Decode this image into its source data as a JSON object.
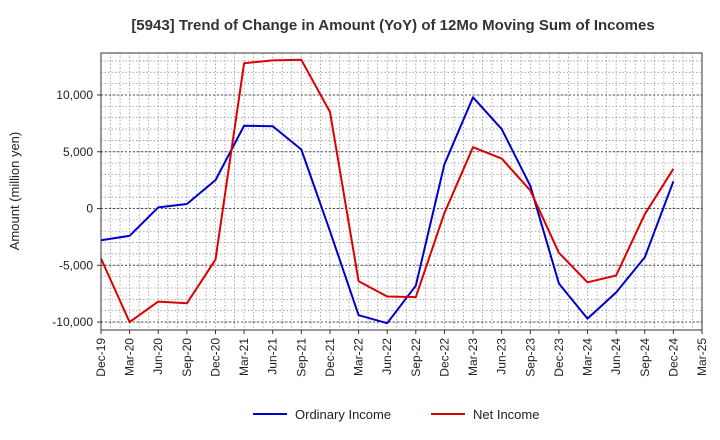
{
  "chart_data": {
    "type": "line",
    "title": "[5943]  Trend of Change in Amount (YoY) of 12Mo Moving Sum of Incomes",
    "ylabel": "Amount (million yen)",
    "xlabel": "",
    "ylim": [
      -10700,
      13700
    ],
    "yticks": [
      10000,
      5000,
      0,
      -5000,
      -10000
    ],
    "ytick_labels": [
      "10,000",
      "5,000",
      "0",
      "-5,000",
      "-10,000"
    ],
    "x_tick_labels": [
      "Dec-19",
      "Mar-20",
      "Jun-20",
      "Sep-20",
      "Dec-20",
      "Mar-21",
      "Jun-21",
      "Sep-21",
      "Dec-21",
      "Mar-22",
      "Jun-22",
      "Sep-22",
      "Dec-22",
      "Mar-23",
      "Jun-23",
      "Sep-23",
      "Dec-23",
      "Mar-24",
      "Jun-24",
      "Sep-24",
      "Dec-24",
      "Mar-25"
    ],
    "grid": true,
    "legend_position": "bottom-center",
    "series": [
      {
        "name": "Ordinary Income",
        "color": "#0000cc",
        "values": [
          -2800,
          -2400,
          100,
          400,
          2500,
          7300,
          7250,
          5200,
          -2000,
          -9400,
          -10100,
          -6800,
          3900,
          9800,
          7000,
          2000,
          -6600,
          -9700,
          -7400,
          -4300,
          2400
        ]
      },
      {
        "name": "Net Income",
        "color": "#dd0000",
        "values": [
          -4400,
          -10000,
          -8200,
          -8350,
          -4500,
          12800,
          13050,
          13100,
          8500,
          -6400,
          -7750,
          -7800,
          -400,
          5400,
          4400,
          1600,
          -3900,
          -6500,
          -5900,
          -500,
          3500
        ]
      }
    ]
  }
}
